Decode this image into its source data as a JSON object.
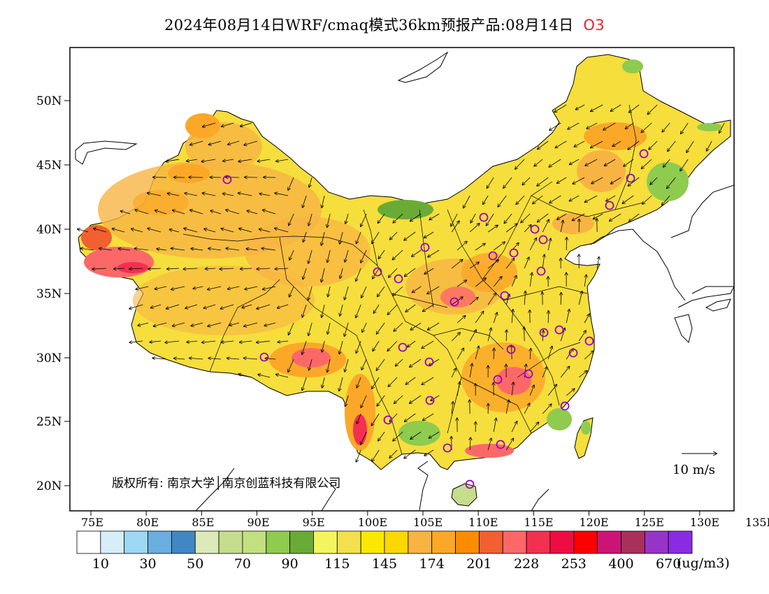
{
  "title": {
    "main": "2024年08月14日WRF/cmaq模式36km预报产品:08月14日",
    "species": "O3"
  },
  "map": {
    "lat_ticks": [
      "50N",
      "45N",
      "40N",
      "35N",
      "30N",
      "25N",
      "20N"
    ],
    "lon_ticks": [
      "75E",
      "80E",
      "85E",
      "90E",
      "95E",
      "100E",
      "105E",
      "110E",
      "115E",
      "120E",
      "125E",
      "130E",
      "135E"
    ],
    "copyright": "版权所有: 南京大学│南京创蓝科技有限公司",
    "wind_reference": "10 m/s"
  },
  "legend": {
    "colors": [
      "#ffffff",
      "#d6eefa",
      "#9dd8f4",
      "#6aaee0",
      "#4187c4",
      "#dde9b8",
      "#c5dd8c",
      "#c2e07f",
      "#8ecb4f",
      "#6aab37",
      "#f3f560",
      "#f3e04d",
      "#fbe800",
      "#fbd800",
      "#f8b443",
      "#fba828",
      "#fb8c00",
      "#f06030",
      "#fc6868",
      "#f3304f",
      "#ee0c42",
      "#fd0000",
      "#cc1477",
      "#a8315c",
      "#9833c8",
      "#8a2be2"
    ],
    "labels": [
      "10",
      "30",
      "50",
      "70",
      "90",
      "115",
      "145",
      "174",
      "201",
      "228",
      "253",
      "400",
      "670"
    ],
    "unit": "(ug/m3)"
  }
}
